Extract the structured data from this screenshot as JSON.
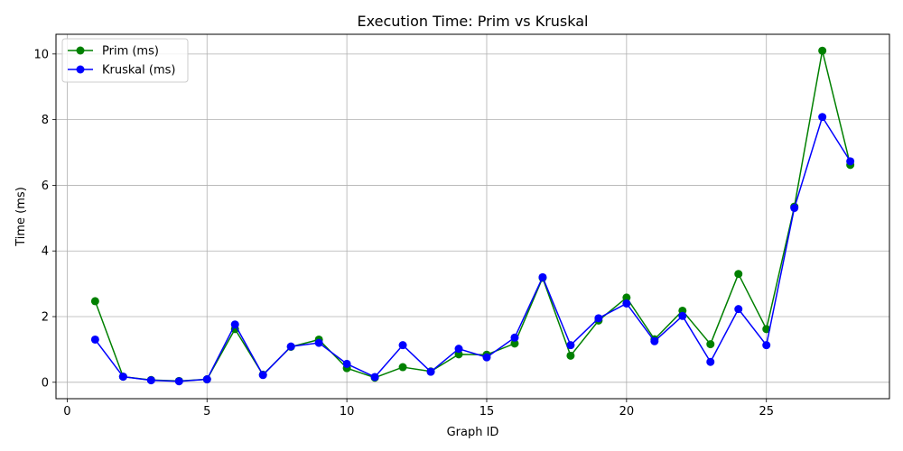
{
  "chart_data": {
    "type": "line",
    "title": "Execution Time: Prim vs Kruskal",
    "xlabel": "Graph ID",
    "ylabel": "Time (ms)",
    "xlim": [
      -0.4,
      29.4
    ],
    "ylim": [
      -0.5,
      10.6
    ],
    "xticks": [
      0,
      5,
      10,
      15,
      20,
      25
    ],
    "yticks": [
      0,
      2,
      4,
      6,
      8,
      10
    ],
    "grid": true,
    "legend_position": "upper-left",
    "x": [
      1,
      2,
      3,
      4,
      5,
      6,
      7,
      8,
      9,
      10,
      11,
      12,
      13,
      14,
      15,
      16,
      17,
      18,
      19,
      20,
      21,
      22,
      23,
      24,
      25,
      26,
      27,
      28
    ],
    "series": [
      {
        "name": "Prim (ms)",
        "color": "#008000",
        "marker": "circle",
        "values": [
          2.47,
          0.17,
          0.07,
          0.04,
          0.09,
          1.62,
          0.23,
          1.08,
          1.3,
          0.43,
          0.14,
          0.46,
          0.33,
          0.85,
          0.84,
          1.18,
          3.18,
          0.81,
          1.88,
          2.58,
          1.31,
          2.18,
          1.16,
          3.3,
          1.62,
          5.35,
          10.1,
          6.62
        ]
      },
      {
        "name": "Kruskal (ms)",
        "color": "#0000ff",
        "marker": "circle",
        "values": [
          1.3,
          0.17,
          0.06,
          0.03,
          0.09,
          1.76,
          0.22,
          1.09,
          1.2,
          0.56,
          0.16,
          1.13,
          0.32,
          1.02,
          0.76,
          1.36,
          3.2,
          1.13,
          1.95,
          2.4,
          1.25,
          2.02,
          0.62,
          2.23,
          1.13,
          5.31,
          8.08,
          6.73
        ]
      }
    ]
  }
}
